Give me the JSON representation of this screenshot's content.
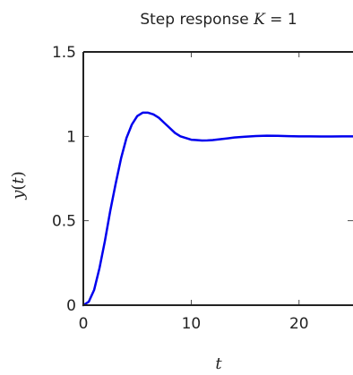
{
  "chart_data": {
    "type": "line",
    "title": "Step response K = 1",
    "title_parts": {
      "prefix": "Step response ",
      "var": "K",
      "suffix": " = 1"
    },
    "xlabel": "t",
    "ylabel_parts": {
      "func": "y",
      "open": "(",
      "var": "t",
      "close": ")"
    },
    "xlim": [
      0,
      25
    ],
    "ylim": [
      0,
      1.5
    ],
    "x_ticks": [
      0,
      10,
      20
    ],
    "x_tick_labels": [
      "0",
      "10",
      "20"
    ],
    "y_ticks": [
      0,
      0.5,
      1,
      1.5
    ],
    "y_tick_labels": [
      "0",
      "0.5",
      "1",
      "1.5"
    ],
    "grid": false,
    "series": [
      {
        "color": "#0000ee",
        "x": [
          0,
          0.5,
          1,
          1.5,
          2,
          2.5,
          3,
          3.5,
          4,
          4.5,
          5,
          5.5,
          6,
          6.5,
          7,
          7.5,
          8,
          8.5,
          9,
          9.5,
          10,
          10.5,
          11,
          11.5,
          12,
          13,
          14,
          15,
          16,
          17,
          18,
          19,
          20,
          21,
          22,
          23,
          24,
          25
        ],
        "y": [
          0,
          0.02,
          0.09,
          0.22,
          0.38,
          0.56,
          0.72,
          0.87,
          0.99,
          1.07,
          1.12,
          1.14,
          1.14,
          1.13,
          1.11,
          1.08,
          1.05,
          1.02,
          1.0,
          0.99,
          0.98,
          0.978,
          0.975,
          0.976,
          0.978,
          0.985,
          0.993,
          0.998,
          1.002,
          1.004,
          1.003,
          1.001,
          1.0,
          1.0,
          0.999,
          0.999,
          1.0,
          1.0
        ]
      }
    ]
  }
}
